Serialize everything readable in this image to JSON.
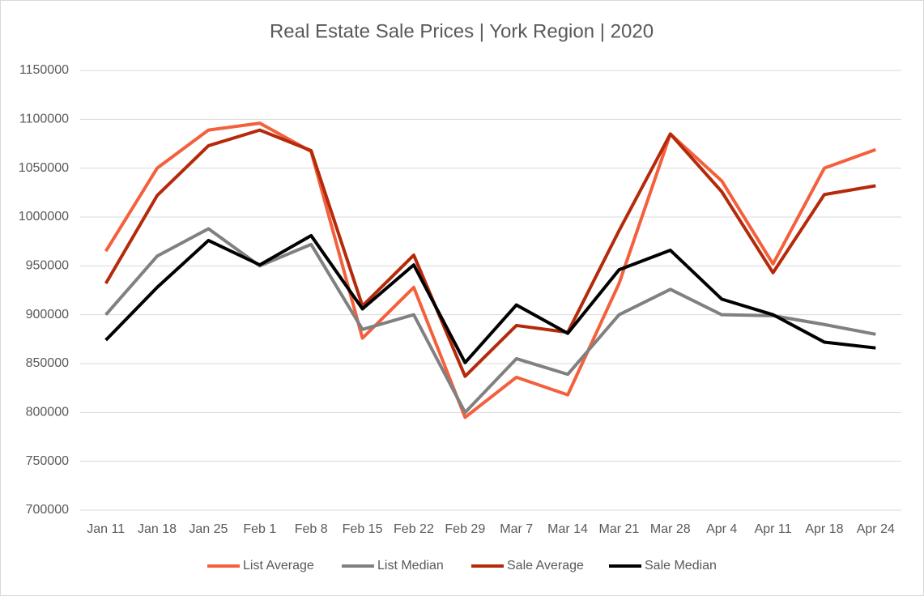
{
  "chart_data": {
    "type": "line",
    "title": "Real Estate Sale Prices | York Region | 2020",
    "categories": [
      "Jan 11",
      "Jan 18",
      "Jan 25",
      "Feb 1",
      "Feb 8",
      "Feb 15",
      "Feb 22",
      "Feb 29",
      "Mar 7",
      "Mar 14",
      "Mar 21",
      "Mar 28",
      "Apr 4",
      "Apr 11",
      "Apr 18",
      "Apr 24"
    ],
    "series": [
      {
        "name": "List Average",
        "color": "#f4603c",
        "values": [
          965000,
          1050000,
          1089000,
          1096000,
          1067000,
          876000,
          928000,
          795000,
          836000,
          818000,
          932000,
          1085000,
          1037000,
          952000,
          1050000,
          1069000
        ]
      },
      {
        "name": "List Median",
        "color": "#808080",
        "values": [
          900000,
          960000,
          988000,
          950000,
          972000,
          885000,
          900000,
          800000,
          855000,
          839000,
          900000,
          926000,
          900000,
          899000,
          890000,
          880000
        ]
      },
      {
        "name": "Sale Average",
        "color": "#b42a0b",
        "values": [
          932000,
          1022000,
          1073000,
          1089000,
          1068000,
          909000,
          961000,
          837000,
          889000,
          882000,
          986000,
          1085000,
          1026000,
          943000,
          1023000,
          1032000
        ]
      },
      {
        "name": "Sale Median",
        "color": "#000000",
        "values": [
          874000,
          928000,
          976000,
          951000,
          981000,
          906000,
          951000,
          851000,
          910000,
          881000,
          946000,
          966000,
          916000,
          900000,
          872000,
          866000
        ]
      }
    ],
    "ylim": [
      700000,
      1150000
    ],
    "yticks": [
      700000,
      750000,
      800000,
      850000,
      900000,
      950000,
      1000000,
      1050000,
      1100000,
      1150000
    ],
    "grid": true,
    "legend": "bottom"
  }
}
